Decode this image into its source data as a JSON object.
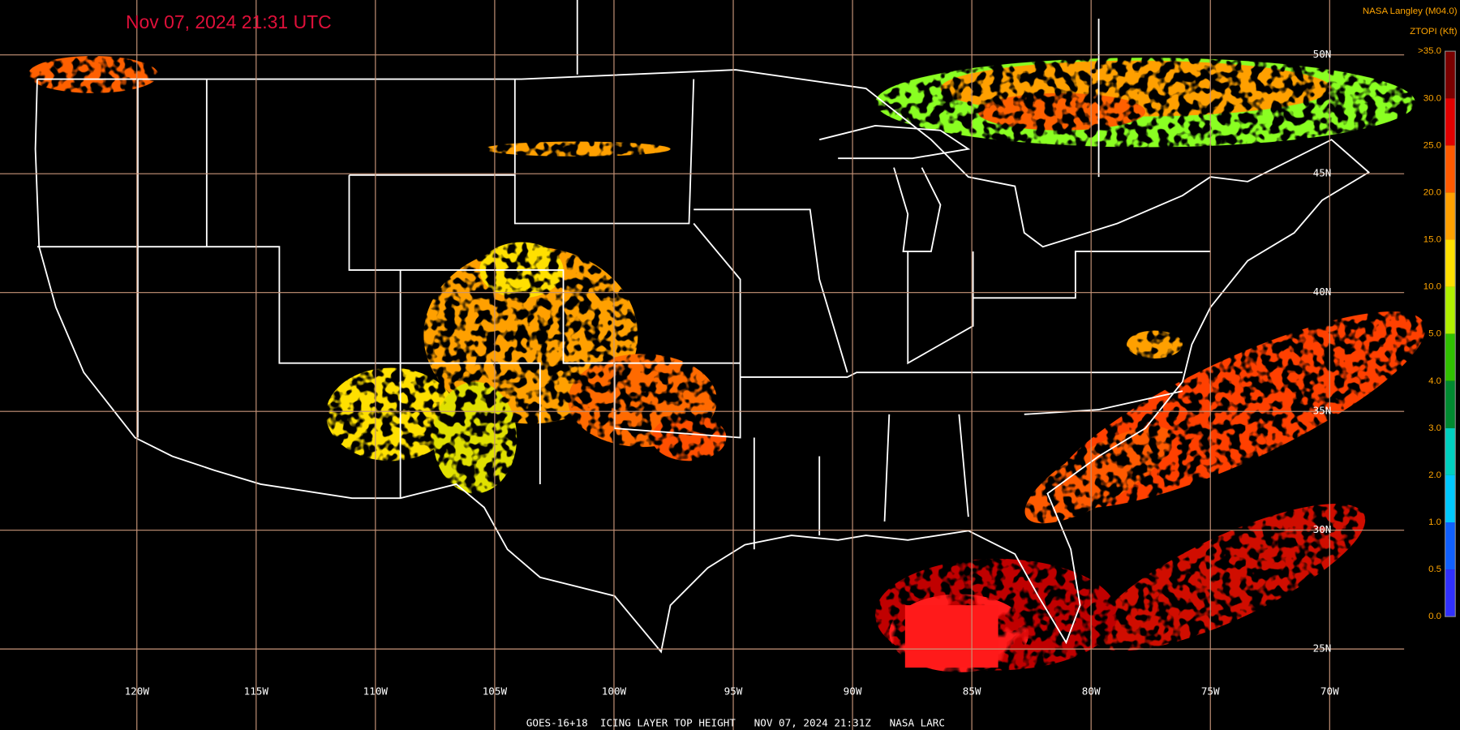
{
  "header": {
    "timestamp": "Nov 07, 2024 21:31 UTC",
    "credit": "NASA Langley (M04.0)",
    "product_units": "ZTOPI (Kft)"
  },
  "colorbar": {
    "labels": [
      ">35.0",
      "30.0",
      "25.0",
      "20.0",
      "15.0",
      "10.0",
      "5.0",
      "4.0",
      "3.0",
      "2.0",
      "1.0",
      "0.5",
      "0.0"
    ],
    "colors": [
      "#7a0000",
      "#e00000",
      "#ff5a00",
      "#ffa000",
      "#ffe000",
      "#b0f000",
      "#30c000",
      "#008a30",
      "#00d0c0",
      "#00c8ff",
      "#1060ff",
      "#3030ff"
    ]
  },
  "grid": {
    "lat_labels": [
      "50N",
      "45N",
      "40N",
      "35N",
      "30N",
      "25N"
    ],
    "lon_labels": [
      "120W",
      "115W",
      "110W",
      "105W",
      "100W",
      "95W",
      "90W",
      "85W",
      "80W",
      "75W",
      "70W"
    ]
  },
  "footer": {
    "caption": "GOES-16+18  ICING LAYER TOP HEIGHT   NOV 07, 2024 21:31Z   NASA LARC"
  }
}
